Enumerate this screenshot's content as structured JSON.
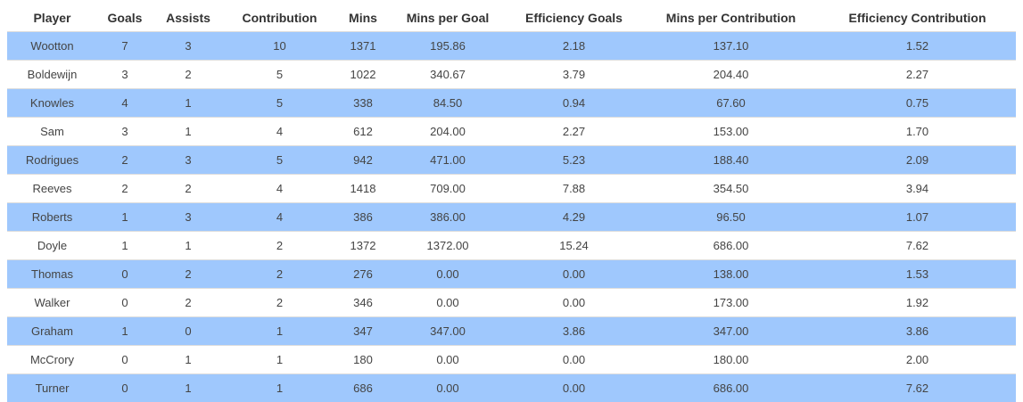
{
  "table": {
    "headers": [
      "Player",
      "Goals",
      "Assists",
      "Contribution",
      "Mins",
      "Mins per Goal",
      "Efficiency Goals",
      "Mins per Contribution",
      "Efficiency Contribution"
    ],
    "rows": [
      [
        "Wootton",
        "7",
        "3",
        "10",
        "1371",
        "195.86",
        "2.18",
        "137.10",
        "1.52"
      ],
      [
        "Boldewijn",
        "3",
        "2",
        "5",
        "1022",
        "340.67",
        "3.79",
        "204.40",
        "2.27"
      ],
      [
        "Knowles",
        "4",
        "1",
        "5",
        "338",
        "84.50",
        "0.94",
        "67.60",
        "0.75"
      ],
      [
        "Sam",
        "3",
        "1",
        "4",
        "612",
        "204.00",
        "2.27",
        "153.00",
        "1.70"
      ],
      [
        "Rodrigues",
        "2",
        "3",
        "5",
        "942",
        "471.00",
        "5.23",
        "188.40",
        "2.09"
      ],
      [
        "Reeves",
        "2",
        "2",
        "4",
        "1418",
        "709.00",
        "7.88",
        "354.50",
        "3.94"
      ],
      [
        "Roberts",
        "1",
        "3",
        "4",
        "386",
        "386.00",
        "4.29",
        "96.50",
        "1.07"
      ],
      [
        "Doyle",
        "1",
        "1",
        "2",
        "1372",
        "1372.00",
        "15.24",
        "686.00",
        "7.62"
      ],
      [
        "Thomas",
        "0",
        "2",
        "2",
        "276",
        "0.00",
        "0.00",
        "138.00",
        "1.53"
      ],
      [
        "Walker",
        "0",
        "2",
        "2",
        "346",
        "0.00",
        "0.00",
        "173.00",
        "1.92"
      ],
      [
        "Graham",
        "1",
        "0",
        "1",
        "347",
        "347.00",
        "3.86",
        "347.00",
        "3.86"
      ],
      [
        "McCrory",
        "0",
        "1",
        "1",
        "180",
        "0.00",
        "0.00",
        "180.00",
        "2.00"
      ],
      [
        "Turner",
        "0",
        "1",
        "1",
        "686",
        "0.00",
        "0.00",
        "686.00",
        "7.62"
      ]
    ]
  },
  "colors": {
    "stripe": "#9fc8fd",
    "background": "#ffffff"
  }
}
